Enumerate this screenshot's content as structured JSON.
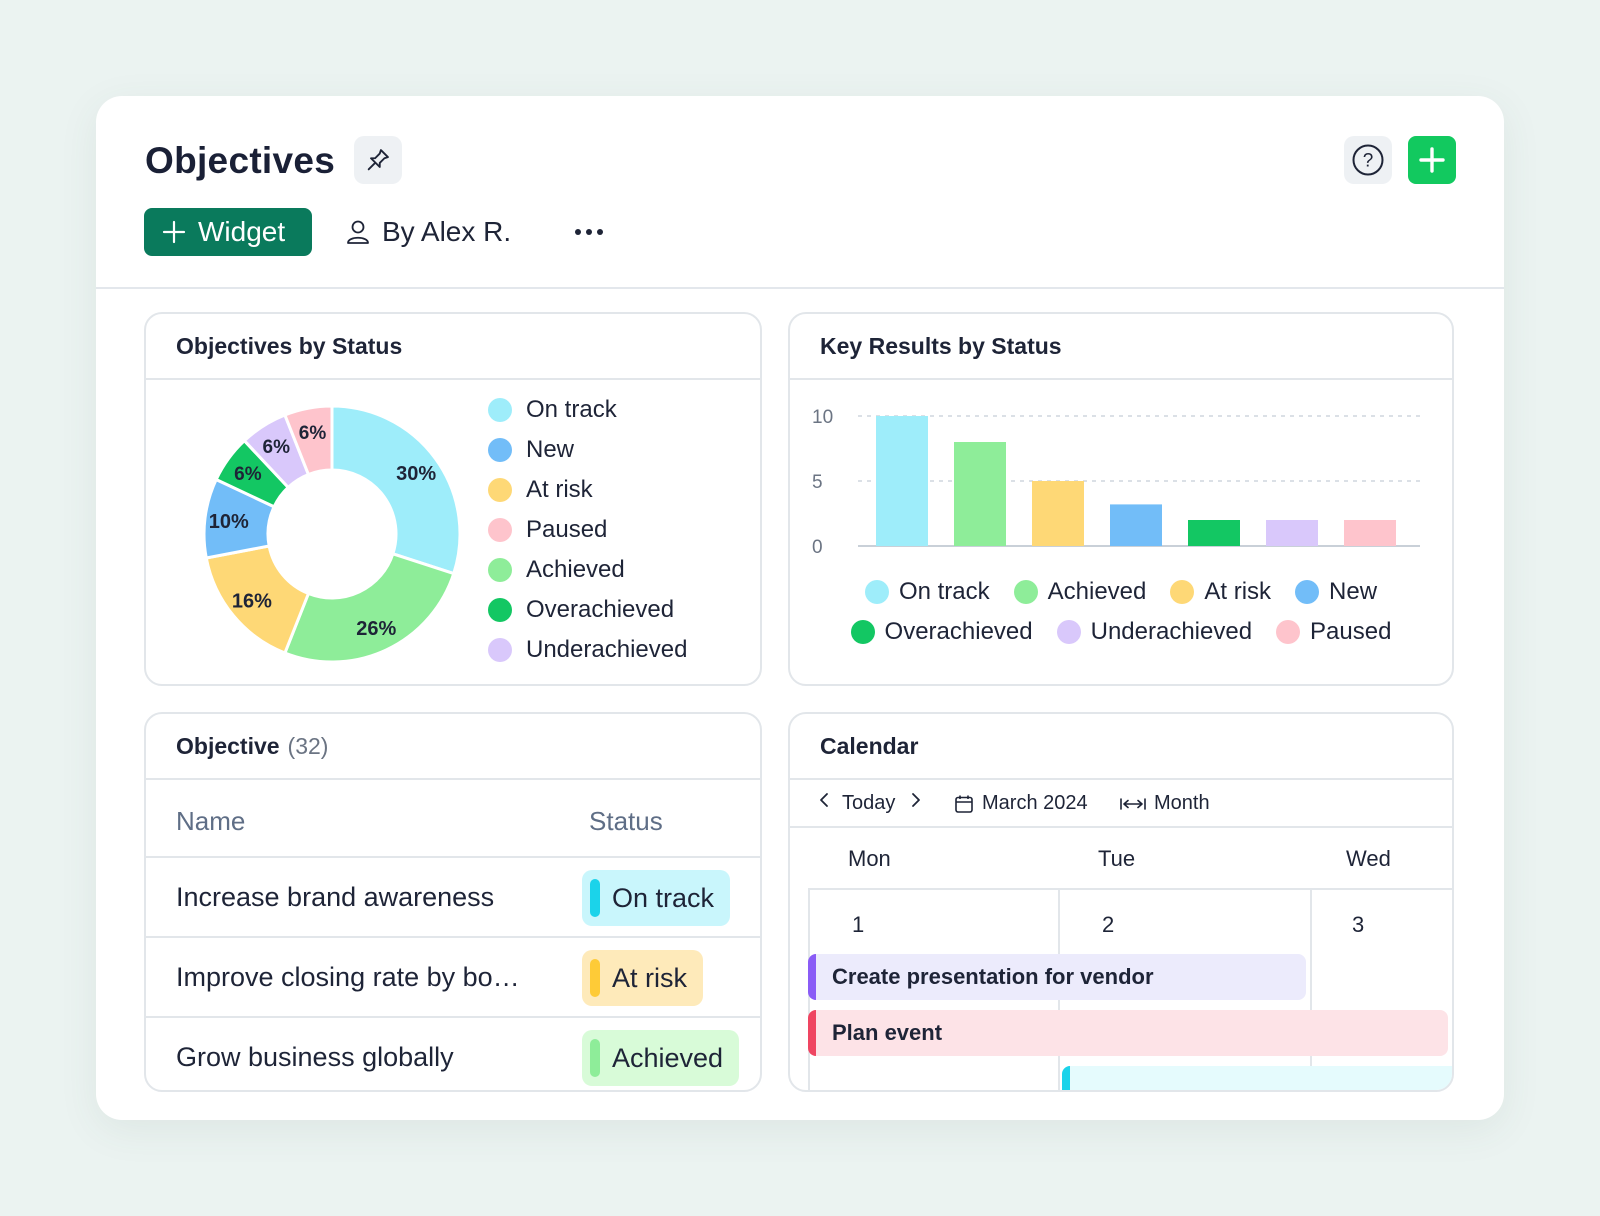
{
  "header": {
    "title": "Objectives",
    "widget_label": "Widget",
    "owner_label": "By Alex R.",
    "colors": {
      "primary": "#0a7a5c",
      "add": "#12c95f"
    }
  },
  "objectives_panel": {
    "title": "Objectives by Status",
    "legend": [
      {
        "label": "On track",
        "color": "#9eedfa"
      },
      {
        "label": "New",
        "color": "#72bdf8"
      },
      {
        "label": "At risk",
        "color": "#fed876"
      },
      {
        "label": "Paused",
        "color": "#fec4cc"
      },
      {
        "label": "Achieved",
        "color": "#8eed99"
      },
      {
        "label": "Overachieved",
        "color": "#13c763"
      },
      {
        "label": "Underachieved",
        "color": "#d9c8fb"
      }
    ]
  },
  "key_results_panel": {
    "title": "Key Results by Status",
    "legend": [
      {
        "label": "On track",
        "color": "#9eedfa"
      },
      {
        "label": "Achieved",
        "color": "#8eed99"
      },
      {
        "label": "At risk",
        "color": "#fed876"
      },
      {
        "label": "New",
        "color": "#72bdf8"
      },
      {
        "label": "Overachieved",
        "color": "#13c763"
      },
      {
        "label": "Underachieved",
        "color": "#d9c8fb"
      },
      {
        "label": "Paused",
        "color": "#fec4cc"
      }
    ]
  },
  "chart_data": [
    {
      "type": "pie",
      "title": "Objectives by Status",
      "categories": [
        "On track",
        "Achieved",
        "At risk",
        "New",
        "Overachieved",
        "Underachieved",
        "Paused"
      ],
      "values": [
        30,
        26,
        16,
        10,
        6,
        6,
        6
      ],
      "labels": [
        "30%",
        "26%",
        "16%",
        "10%",
        "6%",
        "6%",
        "6%"
      ],
      "colors": [
        "#9eedfa",
        "#8eed99",
        "#fed876",
        "#72bdf8",
        "#13c763",
        "#d9c8fb",
        "#fec4cc"
      ],
      "donut": true,
      "legend": "right"
    },
    {
      "type": "bar",
      "title": "Key Results by Status",
      "categories": [
        "On track",
        "Achieved",
        "At risk",
        "New",
        "Overachieved",
        "Underachieved",
        "Paused"
      ],
      "values": [
        10,
        8,
        5,
        3.2,
        2,
        2,
        2
      ],
      "colors": [
        "#9eedfa",
        "#8eed99",
        "#fed876",
        "#72bdf8",
        "#13c763",
        "#d9c8fb",
        "#fec4cc"
      ],
      "yticks": [
        "10",
        "5",
        "0"
      ],
      "ylim": [
        0,
        10
      ],
      "grid": true,
      "legend": "bottom"
    }
  ],
  "objective_table": {
    "title": "Objective",
    "count": "(32)",
    "columns": [
      "Name",
      "Status"
    ],
    "rows": [
      {
        "name": "Increase brand awareness",
        "status": "On track",
        "bg": "#c9f6fc",
        "bar": "#1bd3ea"
      },
      {
        "name": "Improve closing rate by bo…",
        "status": "At risk",
        "bg": "#feeaba",
        "bar": "#fecb37"
      },
      {
        "name": "Grow business globally",
        "status": "Achieved",
        "bg": "#d8fbd8",
        "bar": "#8eed99"
      }
    ]
  },
  "calendar": {
    "title": "Calendar",
    "today_label": "Today",
    "month_label": "March 2024",
    "view_label": "Month",
    "days": [
      {
        "name": "Mon",
        "num": "1"
      },
      {
        "name": "Tue",
        "num": "2"
      },
      {
        "name": "Wed",
        "num": "3"
      }
    ],
    "events": [
      {
        "label": "Create presentation for vendor",
        "bg": "#ecebfc",
        "bar": "#8a5cf6"
      },
      {
        "label": "Plan event",
        "bg": "#fde3e7",
        "bar": "#ef4561"
      },
      {
        "label": "",
        "bg": "#e5fbfd",
        "bar": "#1bd3ea"
      }
    ]
  }
}
